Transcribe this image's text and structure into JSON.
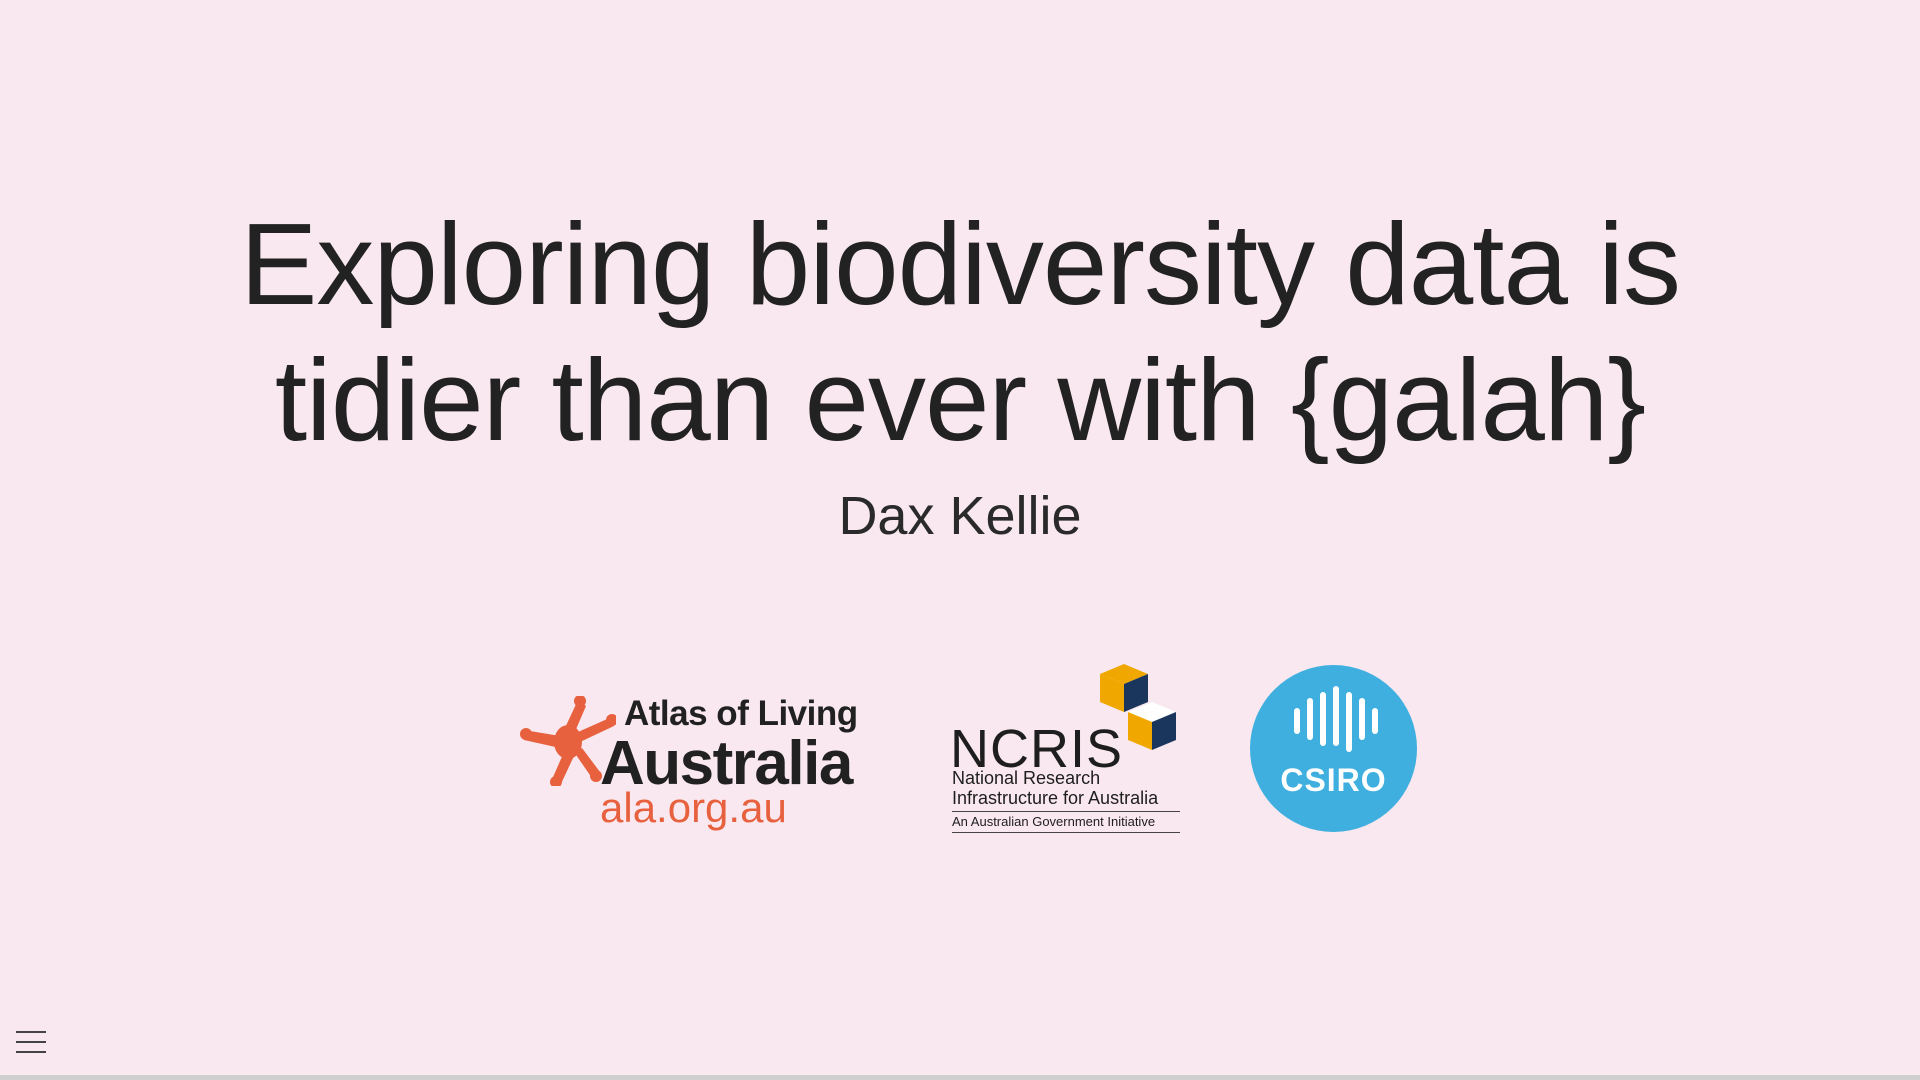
{
  "slide": {
    "title_line1": "Exploring biodiversity data is",
    "title_line2": "tidier than ever with {galah}",
    "author": "Dax Kellie"
  },
  "logos": {
    "ala": {
      "line1": "Atlas of Living",
      "line2": "Australia",
      "url": "ala.org.au",
      "icon": "ala-starburst-icon",
      "accent_color": "#e8613f"
    },
    "ncris": {
      "name": "NCRIS",
      "subtitle_line1": "National Research",
      "subtitle_line2": "Infrastructure for Australia",
      "tagline": "An Australian Government Initiative",
      "icon": "ncris-cubes-icon",
      "colors": [
        "#f0a800",
        "#1b365d"
      ]
    },
    "csiro": {
      "name": "CSIRO",
      "icon": "csiro-waveform-icon",
      "color": "#3eafdf"
    }
  },
  "controls": {
    "menu_icon": "hamburger-menu-icon"
  },
  "colors": {
    "background": "#f9e8ef",
    "text": "#222222"
  }
}
